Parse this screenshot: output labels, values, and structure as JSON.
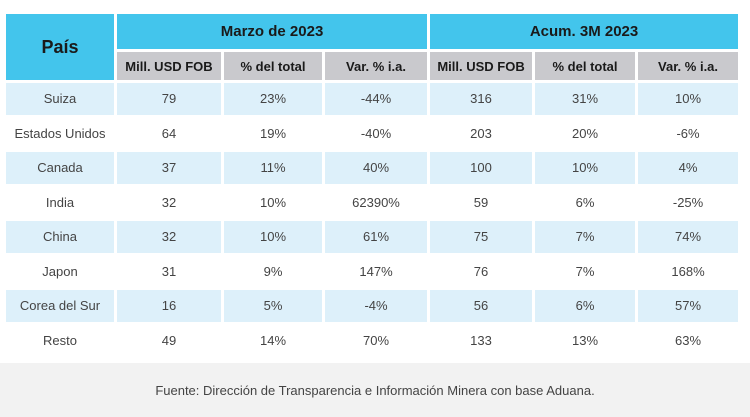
{
  "table": {
    "country_header": "País",
    "group1_title": "Marzo de 2023",
    "group2_title": "Acum. 3M 2023",
    "sub_headers": [
      "Mill. USD FOB",
      "% del total",
      "Var. % i.a.",
      "Mill. USD FOB",
      "% del total",
      "Var. % i.a."
    ],
    "rows": [
      {
        "country": "Suiza",
        "m_usd": "79",
        "m_pct": "23%",
        "m_var": "-44%",
        "a_usd": "316",
        "a_pct": "31%",
        "a_var": "10%"
      },
      {
        "country": "Estados Unidos",
        "m_usd": "64",
        "m_pct": "19%",
        "m_var": "-40%",
        "a_usd": "203",
        "a_pct": "20%",
        "a_var": "-6%"
      },
      {
        "country": "Canada",
        "m_usd": "37",
        "m_pct": "11%",
        "m_var": "40%",
        "a_usd": "100",
        "a_pct": "10%",
        "a_var": "4%"
      },
      {
        "country": "India",
        "m_usd": "32",
        "m_pct": "10%",
        "m_var": "62390%",
        "a_usd": "59",
        "a_pct": "6%",
        "a_var": "-25%"
      },
      {
        "country": "China",
        "m_usd": "32",
        "m_pct": "10%",
        "m_var": "61%",
        "a_usd": "75",
        "a_pct": "7%",
        "a_var": "74%"
      },
      {
        "country": "Japon",
        "m_usd": "31",
        "m_pct": "9%",
        "m_var": "147%",
        "a_usd": "76",
        "a_pct": "7%",
        "a_var": "168%"
      },
      {
        "country": "Corea del Sur",
        "m_usd": "16",
        "m_pct": "5%",
        "m_var": "-4%",
        "a_usd": "56",
        "a_pct": "6%",
        "a_var": "57%"
      },
      {
        "country": "Resto",
        "m_usd": "49",
        "m_pct": "14%",
        "m_var": "70%",
        "a_usd": "133",
        "a_pct": "13%",
        "a_var": "63%"
      }
    ]
  },
  "footer": {
    "source": "Fuente: Dirección de Transparencia e Información Minera con base Aduana."
  },
  "colors": {
    "header_blue": "#43c5ec",
    "subheader_gray": "#c9c9cd",
    "row_alt_blue": "#ddf0fa",
    "footer_bg": "#f2f2f2"
  }
}
